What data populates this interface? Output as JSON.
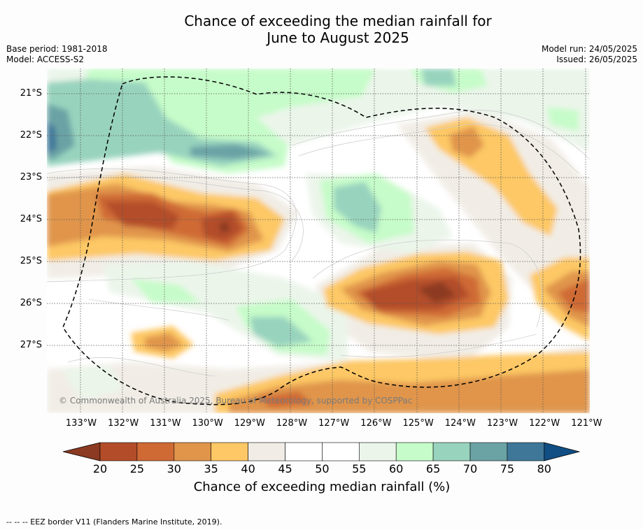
{
  "header": {
    "title_line1": "Chance of exceeding the median rainfall for",
    "title_line2": "June to August 2025",
    "base_period": "Base period: 1981-2018",
    "model": "Model: ACCESS-S2",
    "model_run": "Model run: 24/05/2025",
    "issued": "Issued: 26/05/2025"
  },
  "map": {
    "longitude_labels": [
      "133°W",
      "132°W",
      "131°W",
      "130°W",
      "129°W",
      "128°W",
      "127°W",
      "126°W",
      "125°W",
      "124°W",
      "123°W",
      "122°W",
      "121°W"
    ],
    "latitude_labels": [
      "21°S",
      "22°S",
      "23°S",
      "24°S",
      "25°S",
      "26°S",
      "27°S"
    ],
    "copyright": "© Commonwealth of Australia 2025, Bureau of Meteorology, supported by COSPPac",
    "border_style": "dashed",
    "features": [
      {
        "name": "dry-region-west",
        "category": "20-35",
        "location": "24°S, 130-133°W"
      },
      {
        "name": "dry-region-centre-east",
        "category": "20-35",
        "location": "26°S, 124-126°W"
      },
      {
        "name": "dry-region-northeast",
        "category": "30-40",
        "location": "22°S, 124°W"
      },
      {
        "name": "dry-region-east",
        "category": "25-40",
        "location": "26°S, 121°W"
      },
      {
        "name": "wet-region-northwest",
        "category": "60-80",
        "location": "21-23°S, 130-133°W"
      },
      {
        "name": "wet-region-centre",
        "category": "60-70",
        "location": "24°S, 126.5°W"
      },
      {
        "name": "wet-region-south",
        "category": "60-70",
        "location": "26.5°S, 128.5°W"
      }
    ]
  },
  "legend": {
    "ticks": [
      "20",
      "25",
      "30",
      "35",
      "40",
      "45",
      "50",
      "55",
      "60",
      "65",
      "70",
      "75",
      "80"
    ],
    "colors": [
      "#8c3a21",
      "#b34d29",
      "#cf6a35",
      "#e0954b",
      "#fdc865",
      "#f1ede6",
      "#ffffff",
      "#ffffff",
      "#ebf5ea",
      "#c6fcc9",
      "#98d3be",
      "#6ba3a5",
      "#3f7799",
      "#104e84"
    ],
    "label": "Chance of exceeding median rainfall (%)"
  },
  "footnote": "--  --  -- EEZ border V11 (Flanders Marine Institute, 2019)."
}
